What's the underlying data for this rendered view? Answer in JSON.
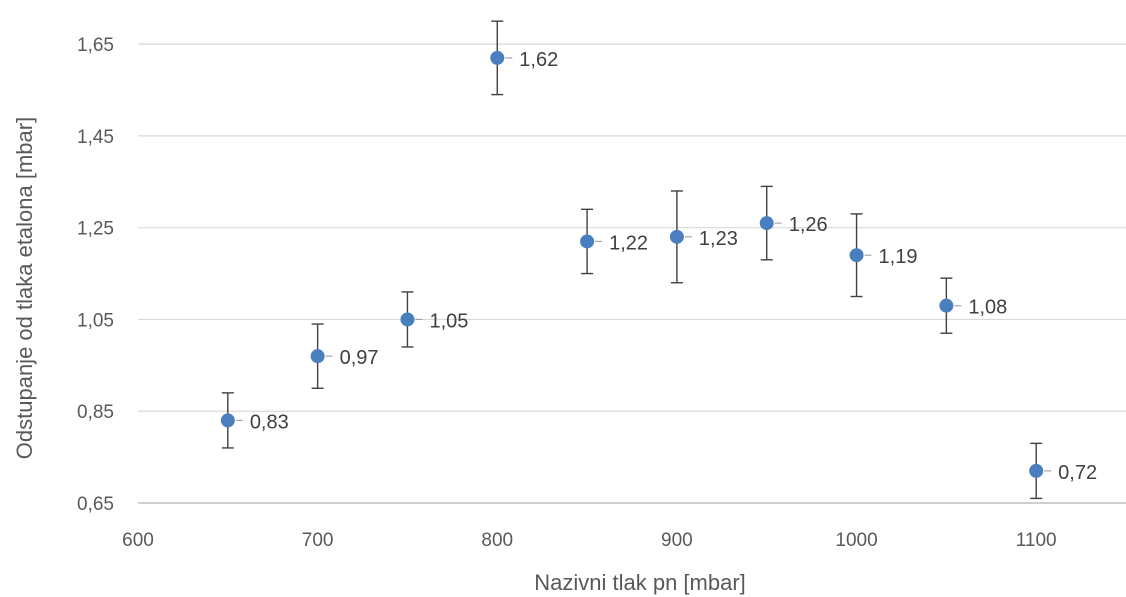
{
  "chart_data": {
    "type": "scatter",
    "title": "",
    "xlabel": "Nazivni tlak pn [mbar]",
    "ylabel": "Odstupanje od tlaka etalona [mbar]",
    "xlim": [
      600,
      1150
    ],
    "ylim": [
      0.65,
      1.72
    ],
    "x_ticks": [
      600,
      700,
      800,
      900,
      1000,
      1100
    ],
    "y_ticks": [
      0.65,
      0.85,
      1.05,
      1.25,
      1.45,
      1.65
    ],
    "x_tick_labels": [
      "600",
      "700",
      "800",
      "900",
      "1000",
      "1100"
    ],
    "y_tick_labels": [
      "0,65",
      "0,85",
      "1,05",
      "1,25",
      "1,45",
      "1,65"
    ],
    "grid": "horizontal",
    "legend": "none",
    "series": [
      {
        "color": "#4a7fbf",
        "points": [
          {
            "x": 650,
            "y": 0.83,
            "err_low": 0.06,
            "err_high": 0.06,
            "label": "0,83"
          },
          {
            "x": 700,
            "y": 0.97,
            "err_low": 0.07,
            "err_high": 0.07,
            "label": "0,97"
          },
          {
            "x": 750,
            "y": 1.05,
            "err_low": 0.06,
            "err_high": 0.06,
            "label": "1,05"
          },
          {
            "x": 800,
            "y": 1.62,
            "err_low": 0.08,
            "err_high": 0.08,
            "label": "1,62"
          },
          {
            "x": 850,
            "y": 1.22,
            "err_low": 0.07,
            "err_high": 0.07,
            "label": "1,22"
          },
          {
            "x": 900,
            "y": 1.23,
            "err_low": 0.1,
            "err_high": 0.1,
            "label": "1,23"
          },
          {
            "x": 950,
            "y": 1.26,
            "err_low": 0.08,
            "err_high": 0.08,
            "label": "1,26"
          },
          {
            "x": 1000,
            "y": 1.19,
            "err_low": 0.09,
            "err_high": 0.09,
            "label": "1,19"
          },
          {
            "x": 1050,
            "y": 1.08,
            "err_low": 0.06,
            "err_high": 0.06,
            "label": "1,08"
          },
          {
            "x": 1100,
            "y": 0.72,
            "err_low": 0.06,
            "err_high": 0.06,
            "label": "0,72"
          }
        ]
      }
    ]
  }
}
